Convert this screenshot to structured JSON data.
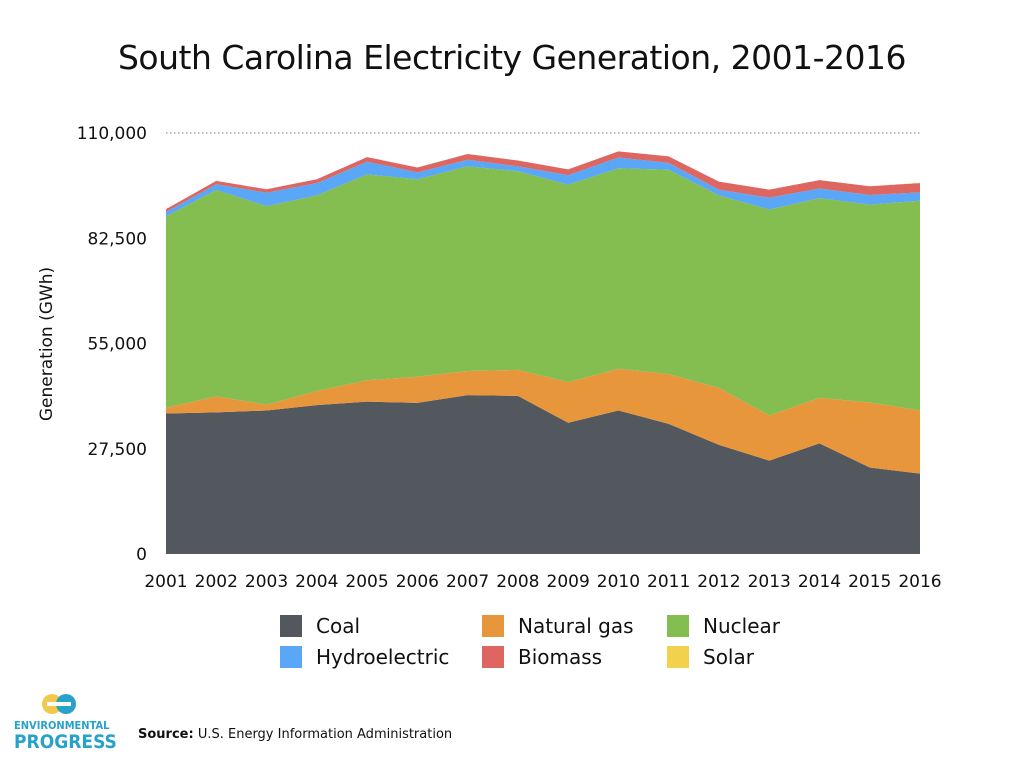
{
  "chart_data": {
    "type": "area",
    "stacked": true,
    "title": "South Carolina Electricity Generation, 2001-2016",
    "ylabel": "Generation (GWh)",
    "xlabel": "",
    "x": [
      "2001",
      "2002",
      "2003",
      "2004",
      "2005",
      "2006",
      "2007",
      "2008",
      "2009",
      "2010",
      "2011",
      "2012",
      "2013",
      "2014",
      "2015",
      "2016"
    ],
    "y_ticks": [
      "0",
      "27,500",
      "55,000",
      "82,500",
      "110,000"
    ],
    "y_tick_values": [
      0,
      27500,
      55000,
      82500,
      110000
    ],
    "ylim": [
      0,
      110000
    ],
    "grid": "top-dotted",
    "legend_position": "bottom",
    "series": [
      {
        "name": "Coal",
        "color": "#53575e",
        "values": [
          36700,
          37000,
          37500,
          38900,
          39800,
          39500,
          41500,
          41300,
          34300,
          37500,
          34000,
          28500,
          24400,
          28900,
          22600,
          21000
        ]
      },
      {
        "name": "Natural gas",
        "color": "#e8963c",
        "values": [
          1500,
          4200,
          1500,
          3700,
          5600,
          6800,
          6300,
          6800,
          10600,
          10900,
          13000,
          14900,
          11800,
          11900,
          17000,
          16500
        ]
      },
      {
        "name": "Nuclear",
        "color": "#84bd50",
        "values": [
          50000,
          53900,
          51900,
          51100,
          53800,
          51600,
          53500,
          51900,
          51600,
          52400,
          53400,
          50300,
          53800,
          52200,
          51700,
          54800
        ]
      },
      {
        "name": "Hydroelectric",
        "color": "#5aa6f7",
        "values": [
          1200,
          1500,
          3500,
          3200,
          3300,
          1800,
          1700,
          1300,
          2500,
          2800,
          1800,
          1500,
          3100,
          2500,
          2500,
          2200
        ]
      },
      {
        "name": "Biomass",
        "color": "#de6660",
        "values": [
          700,
          900,
          900,
          1000,
          1200,
          1300,
          1500,
          1500,
          1500,
          1600,
          1700,
          2100,
          2100,
          2200,
          2300,
          2400
        ]
      },
      {
        "name": "Solar",
        "color": "#f2d14c",
        "values": [
          0,
          0,
          0,
          0,
          0,
          0,
          0,
          0,
          0,
          0,
          0,
          0,
          0,
          0,
          0,
          100
        ]
      }
    ]
  },
  "logo": {
    "line1": "ENVIRONMENTAL",
    "line2": "PROGRESS"
  },
  "source": {
    "label": "Source:",
    "text": "U.S. Energy Information Administration"
  }
}
